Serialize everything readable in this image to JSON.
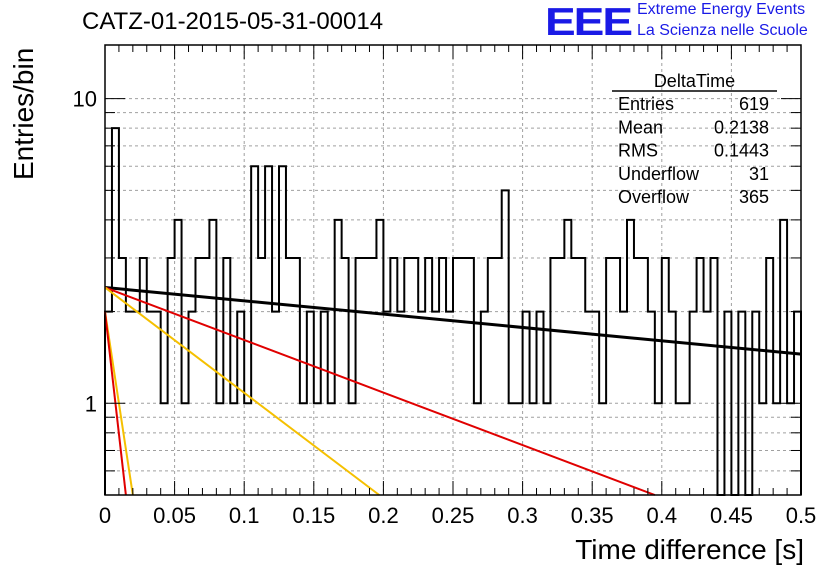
{
  "chart_data": {
    "type": "bar",
    "title": "CATZ-01-2015-05-31-00014",
    "xlabel": "Time difference [s]",
    "ylabel": "Entries/bin",
    "xlim": [
      0,
      0.5
    ],
    "ylim": [
      0.5,
      15
    ],
    "log_y": true,
    "grid": true,
    "x_ticks": [
      "0",
      "0.05",
      "0.1",
      "0.15",
      "0.2",
      "0.25",
      "0.3",
      "0.35",
      "0.4",
      "0.45",
      "0.5"
    ],
    "y_ticks": [
      "1",
      "10"
    ],
    "bin_width": 0.005,
    "histogram": [
      2,
      8,
      3,
      2,
      2,
      3,
      2,
      2,
      1,
      3,
      4,
      1,
      2,
      3,
      3,
      4,
      1,
      3,
      1,
      2,
      1,
      6,
      3,
      6,
      2,
      6,
      3,
      3,
      1,
      2,
      1,
      2,
      1,
      4,
      3,
      1,
      3,
      3,
      3,
      4,
      2,
      3,
      2,
      3,
      3,
      2,
      3,
      2,
      3,
      2,
      3,
      3,
      3,
      1,
      2,
      3,
      3,
      5,
      1,
      1,
      2,
      1,
      2,
      1,
      3,
      3,
      4,
      3,
      3,
      2,
      2,
      1,
      3,
      3,
      2,
      4,
      3,
      3,
      2,
      1,
      3,
      2,
      1,
      1,
      2,
      3,
      2,
      3,
      0.5,
      2,
      0.5,
      2,
      0.5,
      2,
      1,
      3,
      1,
      4,
      1,
      2
    ],
    "stats": {
      "title": "DeltaTime",
      "rows": [
        {
          "label": "Entries",
          "value": "619"
        },
        {
          "label": "Mean",
          "value": "0.2138"
        },
        {
          "label": "RMS",
          "value": "0.1443"
        },
        {
          "label": "Underflow",
          "value": "31"
        },
        {
          "label": "Overflow",
          "value": "365"
        }
      ]
    },
    "fits": [
      {
        "color": "#000000",
        "x": [
          0,
          0.5
        ],
        "y": [
          2.4,
          1.45
        ]
      },
      {
        "color": "#e00000",
        "x": [
          0,
          0.395
        ],
        "y": [
          2.4,
          0.5
        ]
      },
      {
        "color": "#f5c000",
        "x": [
          0,
          0.197
        ],
        "y": [
          2.4,
          0.5
        ]
      },
      {
        "color": "#f5c000",
        "x": [
          0,
          0.02
        ],
        "y": [
          2.0,
          0.5
        ]
      },
      {
        "color": "#e00000",
        "x": [
          0,
          0.015
        ],
        "y": [
          2.0,
          0.5
        ]
      }
    ]
  },
  "logo": {
    "mark": "EEE",
    "line1": "Extreme Energy Events",
    "line2": "La Scienza nelle Scuole"
  }
}
